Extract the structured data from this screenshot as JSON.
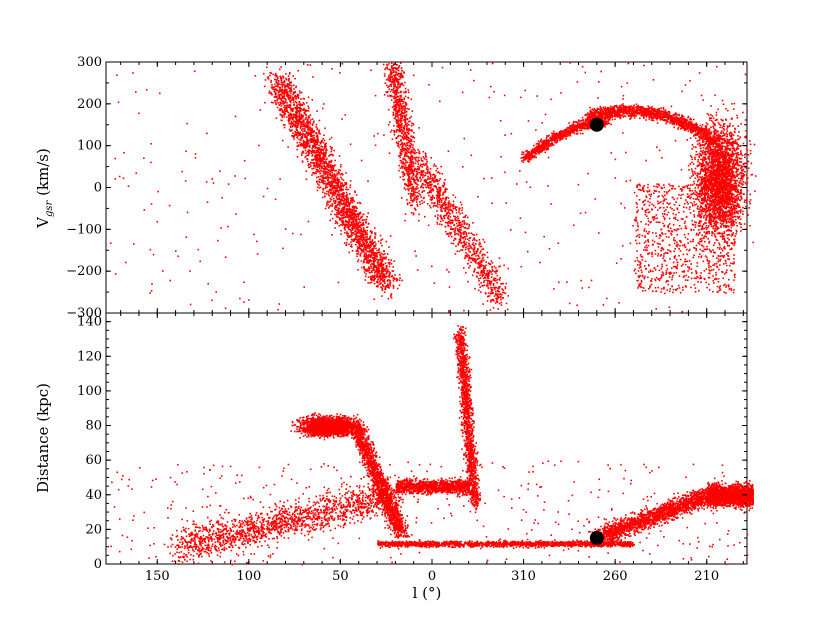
{
  "chart_data": [
    {
      "type": "scatter",
      "panel": "top",
      "xlabel": "l (°)",
      "ylabel_main": "V",
      "ylabel_sub": "gsr",
      "ylabel_rest": " (km/s)",
      "ylim": [
        -300,
        300
      ],
      "yticks": [
        -300,
        -200,
        -100,
        0,
        100,
        200,
        300
      ],
      "ytick_labels": [
        "−300",
        "−200",
        "−100",
        "0",
        "100",
        "200",
        "300"
      ],
      "xaxis": "galactic longitude, decreasing to the right, wrapping through 0/360",
      "x_at_left_edge": 178,
      "x_at_right_edge": 188,
      "xticks": [
        150,
        100,
        50,
        0,
        310,
        260,
        210
      ],
      "xtick_labels": [
        "150",
        "100",
        "50",
        "0",
        "310",
        "260",
        "210"
      ],
      "marker_color": "#ff0000",
      "highlight_color": "#000000",
      "highlight_point": {
        "l": 270,
        "v": 150
      },
      "series": [
        {
          "l": 60,
          "v": 20,
          "spread_l": 20,
          "spread_v": 130
        },
        {
          "l": 14,
          "v": 70,
          "spread_l": 10,
          "spread_v": 170
        },
        {
          "l": 340,
          "v": -140,
          "spread_l": 10,
          "spread_v": 100
        },
        {
          "l": 230,
          "v": 160,
          "spread_l": 40,
          "spread_v": 30
        },
        {
          "l": 202,
          "v": -40,
          "spread_l": 14,
          "spread_v": 150
        }
      ]
    },
    {
      "type": "scatter",
      "panel": "bottom",
      "xlabel": "l (°)",
      "ylabel": "Distance (kpc)",
      "ylim": [
        0,
        145
      ],
      "yticks": [
        0,
        20,
        40,
        60,
        80,
        100,
        120,
        140
      ],
      "ytick_labels": [
        "0",
        "20",
        "40",
        "60",
        "80",
        "100",
        "120",
        "140"
      ],
      "x_at_left_edge": 178,
      "x_at_right_edge": 188,
      "xticks": [
        150,
        100,
        50,
        0,
        310,
        260,
        210
      ],
      "xtick_labels": [
        "150",
        "100",
        "50",
        "0",
        "310",
        "260",
        "210"
      ],
      "marker_color": "#ff0000",
      "highlight_color": "#000000",
      "highlight_point": {
        "l": 270,
        "d": 15
      },
      "series": [
        {
          "l": 55,
          "d": 82,
          "spread_l": 20,
          "spread_d": 6
        },
        {
          "l": 15,
          "d": 45,
          "spread_l": 15,
          "spread_d": 5
        },
        {
          "l": 345,
          "d": 115,
          "spread_l": 8,
          "spread_d": 20
        },
        {
          "l": 280,
          "d": 13,
          "spread_l": 25,
          "spread_d": 2
        },
        {
          "l": 205,
          "d": 40,
          "spread_l": 20,
          "spread_d": 8
        }
      ]
    }
  ]
}
